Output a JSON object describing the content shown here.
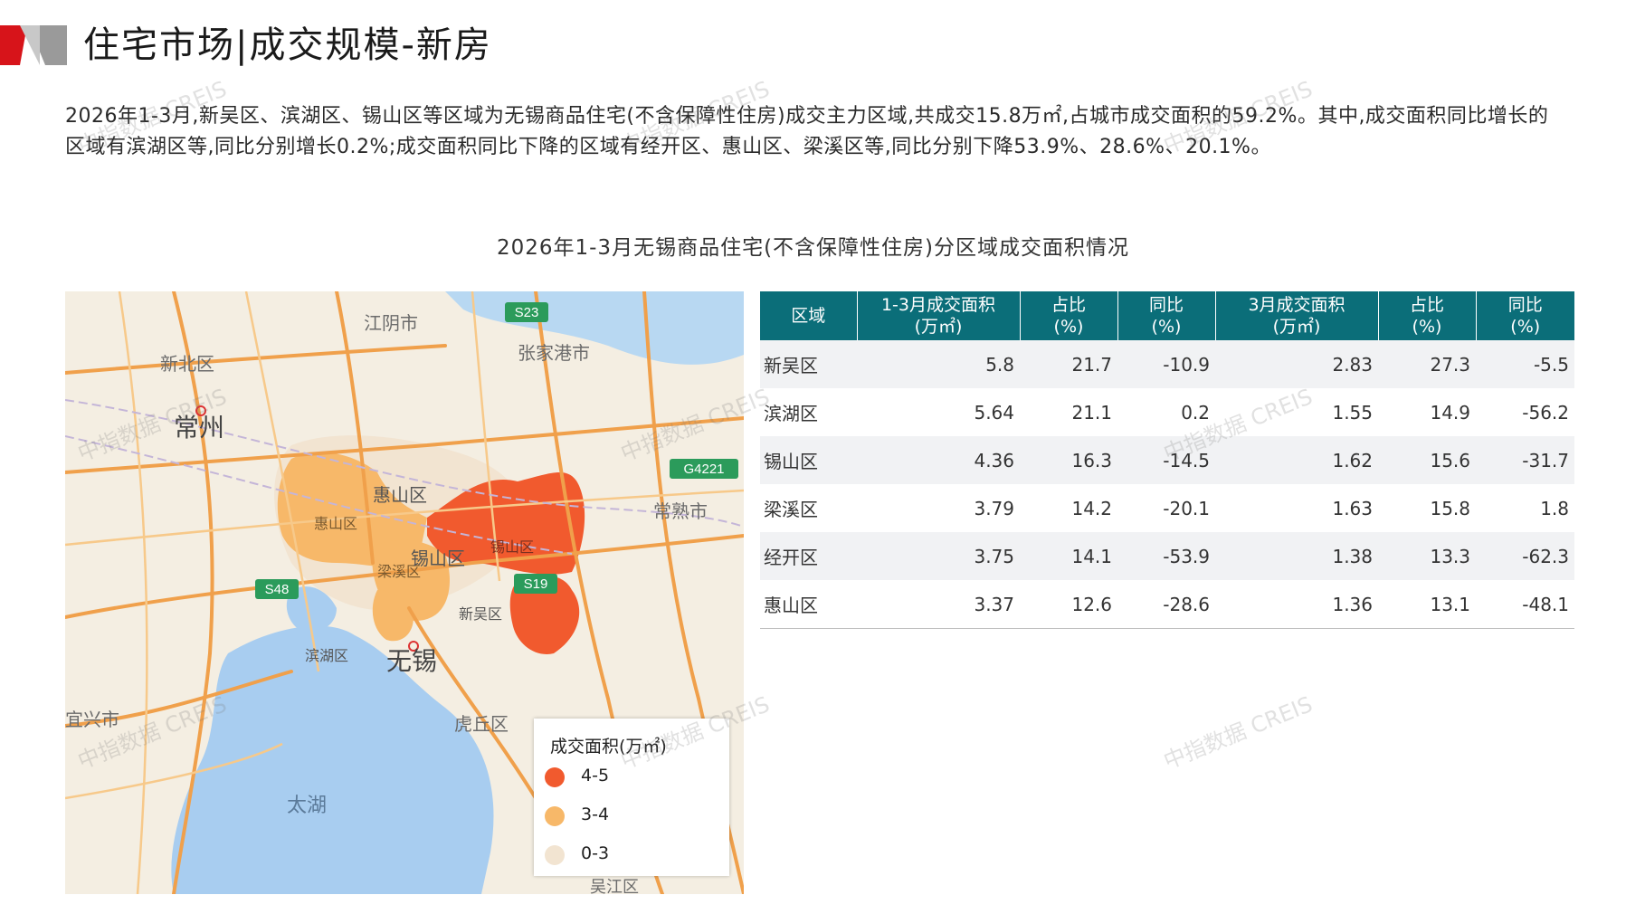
{
  "header": {
    "title": "住宅市场|成交规模-新房"
  },
  "intro": {
    "text": "2026年1-3月,新吴区、滨湖区、锡山区等区域为无锡商品住宅(不含保障性住房)成交主力区域,共成交15.8万㎡,占城市成交面积的59.2%。其中,成交面积同比增长的区域有滨湖区等,同比分别增长0.2%;成交面积同比下降的区域有经开区、惠山区、梁溪区等,同比分别下降53.9%、28.6%、20.1%。"
  },
  "chart_title": "2026年1-3月无锡商品住宅(不含保障性住房)分区域成交面积情况",
  "map": {
    "labels": {
      "jiangyin": "江阴市",
      "zhangjiagang": "张家港市",
      "xinbei": "新北区",
      "changzhou": "常州",
      "huishan1": "惠山区",
      "huishan2": "惠山区",
      "xishan": "锡山区",
      "changshu": "常熟市",
      "liangxi": "梁溪区",
      "xishan2": "锡山区",
      "xinwu": "新吴区",
      "binhu": "滨湖区",
      "wuxi": "无锡",
      "yixing": "宜兴市",
      "huqiu": "虎丘区",
      "taihu": "太湖",
      "wujiang": "吴江区",
      "s23": "S23",
      "g4221": "G4221",
      "s48": "S48",
      "s19": "S19"
    },
    "colors": {
      "high": "#f15a2e",
      "mid": "#f7b869",
      "low": "#f2e4d1",
      "water": "#a8cdf0",
      "road": "#f0a04b"
    }
  },
  "legend": {
    "title": "成交面积(万㎡)",
    "items": [
      {
        "label": "4-5",
        "color": "#f15a2e"
      },
      {
        "label": "3-4",
        "color": "#f7b869"
      },
      {
        "label": "0-3",
        "color": "#f2e4d1"
      }
    ]
  },
  "table": {
    "headers": [
      {
        "line1": "区域",
        "line2": ""
      },
      {
        "line1": "1-3月成交面积",
        "line2": "(万㎡)"
      },
      {
        "line1": "占比",
        "line2": "(%)"
      },
      {
        "line1": "同比",
        "line2": "(%)"
      },
      {
        "line1": "3月成交面积",
        "line2": "(万㎡)"
      },
      {
        "line1": "占比",
        "line2": "(%)"
      },
      {
        "line1": "同比",
        "line2": "(%)"
      }
    ],
    "rows": [
      {
        "region": "新吴区",
        "q_area": "5.8",
        "q_share": "21.7",
        "q_yoy": "-10.9",
        "m_area": "2.83",
        "m_share": "27.3",
        "m_yoy": "-5.5"
      },
      {
        "region": "滨湖区",
        "q_area": "5.64",
        "q_share": "21.1",
        "q_yoy": "0.2",
        "m_area": "1.55",
        "m_share": "14.9",
        "m_yoy": "-56.2"
      },
      {
        "region": "锡山区",
        "q_area": "4.36",
        "q_share": "16.3",
        "q_yoy": "-14.5",
        "m_area": "1.62",
        "m_share": "15.6",
        "m_yoy": "-31.7"
      },
      {
        "region": "梁溪区",
        "q_area": "3.79",
        "q_share": "14.2",
        "q_yoy": "-20.1",
        "m_area": "1.63",
        "m_share": "15.8",
        "m_yoy": "1.8"
      },
      {
        "region": "经开区",
        "q_area": "3.75",
        "q_share": "14.1",
        "q_yoy": "-53.9",
        "m_area": "1.38",
        "m_share": "13.3",
        "m_yoy": "-62.3"
      },
      {
        "region": "惠山区",
        "q_area": "3.37",
        "q_share": "12.6",
        "q_yoy": "-28.6",
        "m_area": "1.36",
        "m_share": "13.1",
        "m_yoy": "-48.1"
      }
    ]
  },
  "watermark": "中指数据 CREIS"
}
